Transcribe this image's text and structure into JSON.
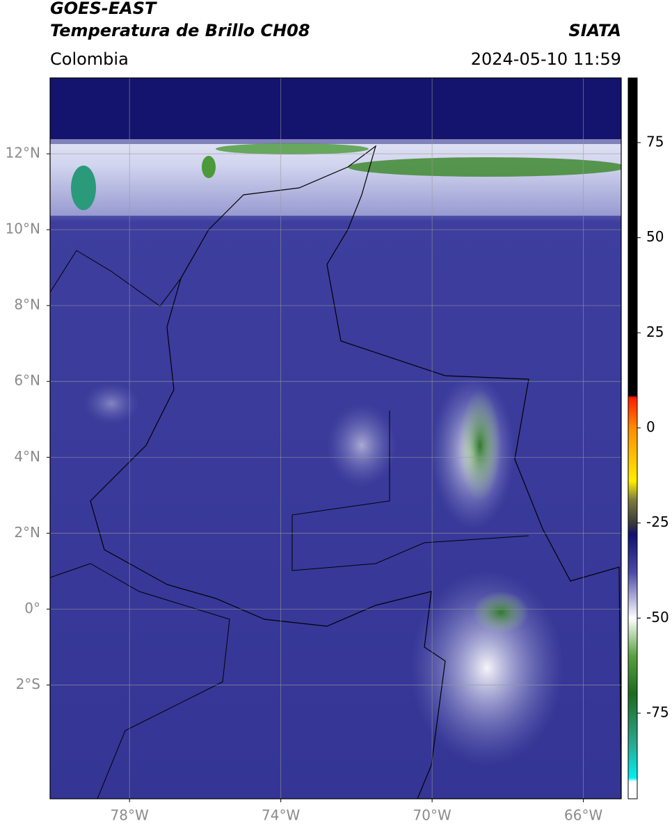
{
  "header": {
    "title": "GOES-EAST",
    "subtitle": "Temperatura de Brillo CH08",
    "source": "SIATA",
    "region": "Colombia",
    "datetime": "2024-05-10 11:59"
  },
  "map": {
    "xlim": [
      -80.1,
      -65
    ],
    "ylim": [
      -5,
      14
    ],
    "xticks": [
      {
        "value": -78,
        "label": "78°W"
      },
      {
        "value": -74,
        "label": "74°W"
      },
      {
        "value": -70,
        "label": "70°W"
      },
      {
        "value": -66,
        "label": "66°W"
      }
    ],
    "yticks": [
      {
        "value": 12,
        "label": "12°N"
      },
      {
        "value": 10,
        "label": "10°N"
      },
      {
        "value": 8,
        "label": "8°N"
      },
      {
        "value": 6,
        "label": "6°N"
      },
      {
        "value": 4,
        "label": "4°N"
      },
      {
        "value": 2,
        "label": "2°N"
      },
      {
        "value": 0,
        "label": "0°"
      },
      {
        "value": -2,
        "label": "2°S"
      }
    ],
    "grid": true
  },
  "colorbar": {
    "clim": [
      -97.5,
      92
    ],
    "ticks": [
      75,
      50,
      25,
      0,
      -25,
      -50,
      -75
    ],
    "stops": [
      {
        "value": 92,
        "color": "#000000"
      },
      {
        "value": 8.5,
        "color": "#000000"
      },
      {
        "value": 8,
        "color": "#ff1a00"
      },
      {
        "value": 0,
        "color": "#ff8c00"
      },
      {
        "value": -14,
        "color": "#ffee00"
      },
      {
        "value": -19,
        "color": "#7d7a3a"
      },
      {
        "value": -25,
        "color": "#3a3a3a"
      },
      {
        "value": -28,
        "color": "#101070"
      },
      {
        "value": -38,
        "color": "#4a4aa8"
      },
      {
        "value": -50,
        "color": "#ffffff"
      },
      {
        "value": -60,
        "color": "#58a040"
      },
      {
        "value": -70,
        "color": "#1e6a1e"
      },
      {
        "value": -83,
        "color": "#2aa890"
      },
      {
        "value": -92,
        "color": "#00f0f0"
      },
      {
        "value": -93,
        "color": "#ffffff"
      },
      {
        "value": -97.5,
        "color": "#ffffff"
      }
    ]
  }
}
